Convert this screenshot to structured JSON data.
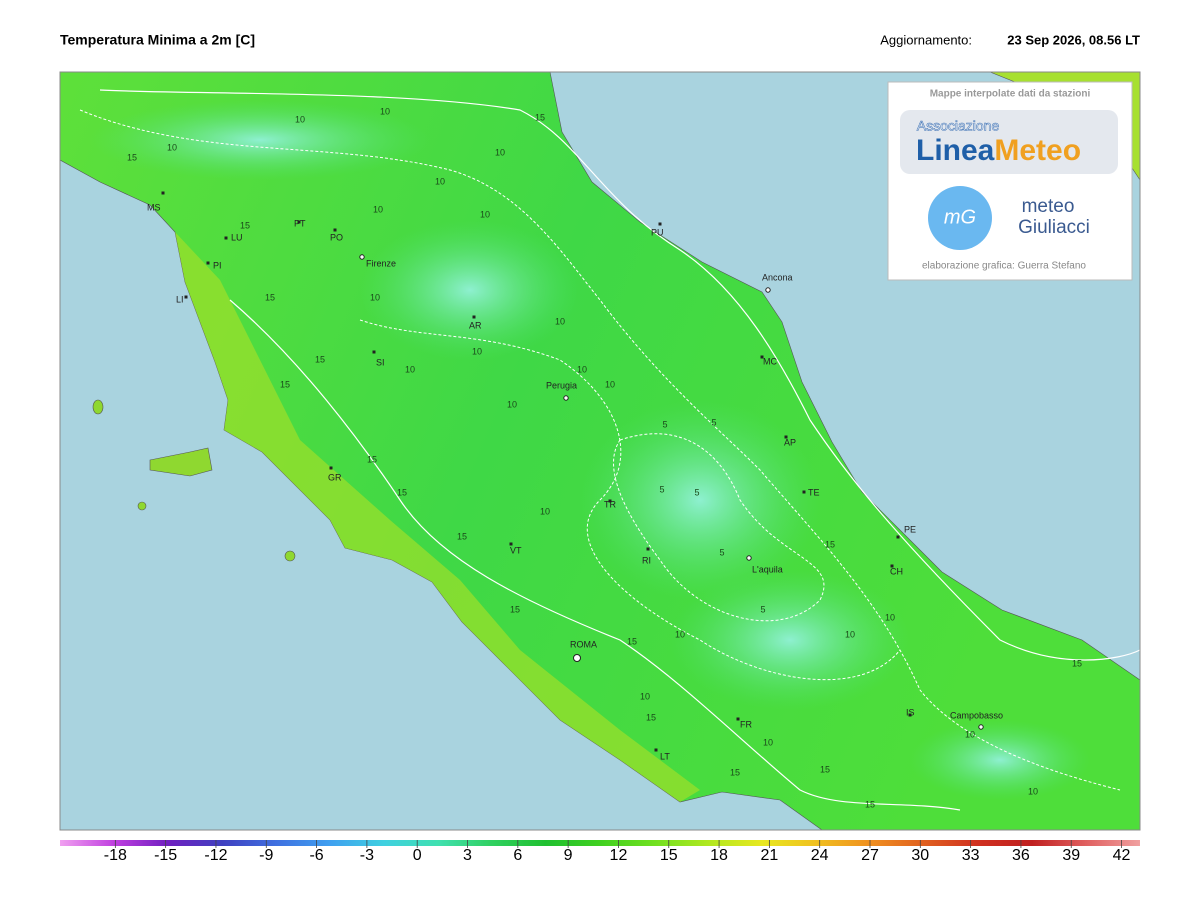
{
  "header": {
    "title": "Temperatura Minima a 2m [C]",
    "update_label": "Aggiornamento:",
    "update_value": "23 Sep 2026, 08.56 LT"
  },
  "logo": {
    "caption": "Mappe interpolate dati da stazioni",
    "association": "Associazione",
    "brand_a": "Linea",
    "brand_b": "Meteo",
    "mg": "mG",
    "meteo": "meteo",
    "giuliacci": "Giuliacci",
    "credit": "elaborazione grafica: Guerra Stefano"
  },
  "cities": [
    {
      "label": "MS"
    },
    {
      "label": "LU"
    },
    {
      "label": "PT"
    },
    {
      "label": "PO"
    },
    {
      "label": "PI"
    },
    {
      "label": "LI"
    },
    {
      "label": "Firenze"
    },
    {
      "label": "AR"
    },
    {
      "label": "SI"
    },
    {
      "label": "Perugia"
    },
    {
      "label": "PU"
    },
    {
      "label": "Ancona"
    },
    {
      "label": "MC"
    },
    {
      "label": "AP"
    },
    {
      "label": "TE"
    },
    {
      "label": "PE"
    },
    {
      "label": "CH"
    },
    {
      "label": "GR"
    },
    {
      "label": "VT"
    },
    {
      "label": "TR"
    },
    {
      "label": "RI"
    },
    {
      "label": "L'aquila"
    },
    {
      "label": "ROMA"
    },
    {
      "label": "FR"
    },
    {
      "label": "LT"
    },
    {
      "label": "IS"
    },
    {
      "label": "Campobasso"
    }
  ],
  "contour_labels": [
    "15",
    "10",
    "10",
    "15",
    "10",
    "10",
    "10",
    "15",
    "10",
    "10",
    "15",
    "10",
    "10",
    "10",
    "15",
    "10",
    "10",
    "10",
    "10",
    "15",
    "15",
    "15",
    "15",
    "10",
    "5",
    "5",
    "5",
    "5",
    "5",
    "5",
    "10",
    "15",
    "15",
    "15",
    "10",
    "10",
    "10",
    "15",
    "10",
    "15",
    "15",
    "10",
    "15",
    "15",
    "10"
  ],
  "colorbar": {
    "range": [
      -21.3,
      43.1
    ],
    "ticks": [
      -18,
      -15,
      -12,
      -9,
      -6,
      -3,
      0,
      3,
      6,
      9,
      12,
      15,
      18,
      21,
      24,
      27,
      30,
      33,
      36,
      39,
      42
    ],
    "colors": [
      "#f0a0f0",
      "#c040e0",
      "#7020c0",
      "#4040c0",
      "#4070e0",
      "#40a0f0",
      "#40d0e0",
      "#40e0b0",
      "#30d060",
      "#20c030",
      "#40d020",
      "#70e020",
      "#b0e820",
      "#e8e820",
      "#f0c020",
      "#f09020",
      "#e06020",
      "#d03020",
      "#c02020",
      "#e06060",
      "#f0a0a0"
    ]
  }
}
